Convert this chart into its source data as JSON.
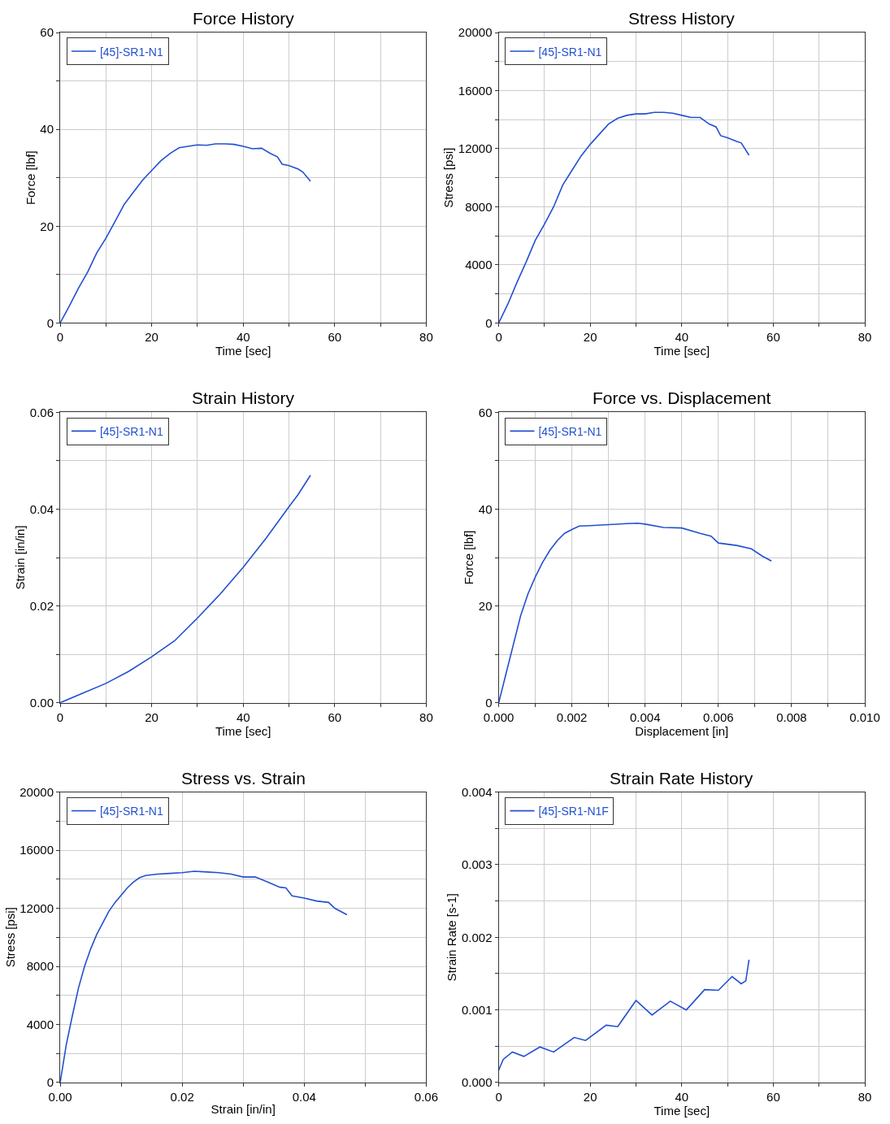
{
  "chart_data": [
    {
      "type": "line",
      "title": "Force History",
      "xlabel": "Time [sec]",
      "ylabel": "Force [lbf]",
      "legend": "top left",
      "grid": true,
      "line_style": "solid",
      "xlim": [
        0,
        80
      ],
      "ylim": [
        0,
        60
      ],
      "xticks": [
        0,
        {
          "value": 10,
          "label": null
        },
        20,
        {
          "value": 30,
          "label": null
        },
        40,
        {
          "value": 50,
          "label": null
        },
        60,
        {
          "value": 70,
          "label": null
        },
        80
      ],
      "yticks": [
        0,
        {
          "value": 10,
          "label": null
        },
        20,
        {
          "value": 30,
          "label": null
        },
        40,
        {
          "value": 50,
          "label": null
        },
        60
      ],
      "series": [
        {
          "name": "[45]-SR1-N1",
          "color": "#2250d0",
          "x": [
            0,
            2,
            4,
            6,
            8,
            10,
            12,
            14,
            16,
            18,
            20,
            22,
            24,
            26,
            28,
            30,
            32,
            34,
            36,
            38,
            40,
            42,
            44,
            46,
            47.5,
            48.5,
            50,
            52,
            53,
            54.7
          ],
          "values": [
            0,
            3.5,
            7.2,
            10.5,
            14.5,
            17.5,
            21,
            24.5,
            27,
            29.5,
            31.5,
            33.5,
            35,
            36.2,
            36.5,
            36.8,
            36.7,
            37,
            37,
            36.9,
            36.5,
            36,
            36.1,
            35,
            34.3,
            32.8,
            32.5,
            31.8,
            31.2,
            29.3
          ]
        }
      ]
    },
    {
      "type": "line",
      "title": "Stress History",
      "xlabel": "Time [sec]",
      "ylabel": "Stress [psi]",
      "legend": "top left",
      "grid": true,
      "line_style": "solid",
      "xlim": [
        0,
        80
      ],
      "ylim": [
        0,
        20000
      ],
      "xticks": [
        0,
        {
          "value": 10,
          "label": null
        },
        20,
        {
          "value": 30,
          "label": null
        },
        40,
        {
          "value": 50,
          "label": null
        },
        60,
        {
          "value": 70,
          "label": null
        },
        80
      ],
      "yticks": [
        0,
        {
          "value": 2000,
          "label": null
        },
        4000,
        {
          "value": 6000,
          "label": null
        },
        8000,
        {
          "value": 10000,
          "label": null
        },
        12000,
        {
          "value": 14000,
          "label": null
        },
        16000,
        {
          "value": 18000,
          "label": null
        },
        20000
      ],
      "series": [
        {
          "name": "[45]-SR1-N1",
          "color": "#2250d0",
          "x": [
            0,
            2,
            4,
            6,
            8,
            10,
            12,
            14,
            16,
            18,
            20,
            22,
            24,
            26,
            28,
            30,
            32,
            34,
            36,
            38,
            40,
            42,
            44,
            46,
            47.5,
            48.5,
            50,
            52,
            53,
            54.7
          ],
          "values": [
            0,
            1300,
            2800,
            4200,
            5700,
            6800,
            8000,
            9500,
            10500,
            11500,
            12300,
            13000,
            13700,
            14100,
            14300,
            14400,
            14400,
            14500,
            14500,
            14450,
            14300,
            14150,
            14150,
            13700,
            13500,
            12900,
            12750,
            12500,
            12400,
            11550
          ]
        }
      ]
    },
    {
      "type": "line",
      "title": "Strain History",
      "xlabel": "Time [sec]",
      "ylabel": "Strain [in/in]",
      "legend": "top left",
      "grid": true,
      "line_style": "solid",
      "xlim": [
        0,
        80
      ],
      "ylim": [
        0,
        0.06
      ],
      "xticks": [
        0,
        {
          "value": 10,
          "label": null
        },
        20,
        {
          "value": 30,
          "label": null
        },
        40,
        {
          "value": 50,
          "label": null
        },
        60,
        {
          "value": 70,
          "label": null
        },
        80
      ],
      "yticks": [
        {
          "value": 0,
          "label": "0.00"
        },
        {
          "value": 0.01,
          "label": null
        },
        0.02,
        {
          "value": 0.03,
          "label": null
        },
        0.04,
        {
          "value": 0.05,
          "label": null
        },
        0.06
      ],
      "series": [
        {
          "name": "[45]-SR1-N1",
          "color": "#2250d0",
          "x": [
            0,
            5,
            10,
            15,
            20,
            25,
            30,
            35,
            40,
            45,
            50,
            52,
            54.7
          ],
          "values": [
            0,
            0.002,
            0.004,
            0.0065,
            0.0095,
            0.0128,
            0.0175,
            0.0225,
            0.028,
            0.034,
            0.0405,
            0.043,
            0.047
          ]
        }
      ]
    },
    {
      "type": "line",
      "title": "Force vs. Displacement",
      "xlabel": "Displacement [in]",
      "ylabel": "Force [lbf]",
      "legend": "top left",
      "grid": true,
      "line_style": "solid",
      "xlim": [
        0,
        0.01
      ],
      "ylim": [
        0,
        60
      ],
      "xticks": [
        {
          "value": 0,
          "label": "0.000"
        },
        {
          "value": 0.001,
          "label": null
        },
        0.002,
        {
          "value": 0.003,
          "label": null
        },
        0.004,
        {
          "value": 0.005,
          "label": null
        },
        0.006,
        {
          "value": 0.007,
          "label": null
        },
        0.008,
        {
          "value": 0.009,
          "label": null
        },
        {
          "value": 0.01,
          "label": "0.010"
        }
      ],
      "yticks": [
        0,
        {
          "value": 10,
          "label": null
        },
        20,
        {
          "value": 30,
          "label": null
        },
        40,
        {
          "value": 50,
          "label": null
        },
        60
      ],
      "series": [
        {
          "name": "[45]-SR1-N1",
          "color": "#2250d0",
          "x": [
            0,
            0.0002,
            0.0004,
            0.0006,
            0.0008,
            0.001,
            0.0012,
            0.0014,
            0.0016,
            0.0018,
            0.002,
            0.0022,
            0.0025,
            0.003,
            0.0035,
            0.0038,
            0.004,
            0.0045,
            0.005,
            0.0055,
            0.0058,
            0.006,
            0.0065,
            0.0069,
            0.0072,
            0.00745
          ],
          "values": [
            0,
            6,
            12,
            18,
            22.5,
            26,
            29,
            31.5,
            33.5,
            35,
            35.8,
            36.5,
            36.6,
            36.8,
            37,
            37.1,
            36.9,
            36.2,
            36.1,
            35,
            34.4,
            33,
            32.5,
            31.8,
            30.3,
            29.3
          ]
        }
      ]
    },
    {
      "type": "line",
      "title": "Stress vs. Strain",
      "xlabel": "Strain [in/in]",
      "ylabel": "Stress [psi]",
      "legend": "top left",
      "grid": true,
      "line_style": "solid",
      "xlim": [
        0,
        0.06
      ],
      "ylim": [
        0,
        20000
      ],
      "xticks": [
        {
          "value": 0,
          "label": "0.00"
        },
        {
          "value": 0.01,
          "label": null
        },
        0.02,
        {
          "value": 0.03,
          "label": null
        },
        0.04,
        {
          "value": 0.05,
          "label": null
        },
        0.06
      ],
      "yticks": [
        0,
        {
          "value": 2000,
          "label": null
        },
        4000,
        {
          "value": 6000,
          "label": null
        },
        8000,
        {
          "value": 10000,
          "label": null
        },
        12000,
        {
          "value": 14000,
          "label": null
        },
        16000,
        {
          "value": 18000,
          "label": null
        },
        20000
      ],
      "series": [
        {
          "name": "[45]-SR1-N1",
          "color": "#2250d0",
          "x": [
            0,
            0.001,
            0.002,
            0.003,
            0.004,
            0.005,
            0.006,
            0.007,
            0.008,
            0.009,
            0.01,
            0.011,
            0.012,
            0.013,
            0.014,
            0.016,
            0.018,
            0.02,
            0.022,
            0.024,
            0.026,
            0.028,
            0.03,
            0.032,
            0.034,
            0.036,
            0.037,
            0.038,
            0.04,
            0.042,
            0.044,
            0.045,
            0.047
          ],
          "values": [
            0,
            2600,
            4600,
            6500,
            8000,
            9200,
            10200,
            11000,
            11800,
            12400,
            12900,
            13400,
            13800,
            14100,
            14250,
            14350,
            14400,
            14450,
            14550,
            14500,
            14450,
            14350,
            14150,
            14150,
            13800,
            13450,
            13400,
            12850,
            12700,
            12500,
            12400,
            12000,
            11550
          ]
        }
      ]
    },
    {
      "type": "line",
      "title": "Strain Rate History",
      "xlabel": "Time [sec]",
      "ylabel": "Strain Rate [s-1]",
      "legend": "top left",
      "grid": true,
      "line_style": "solid",
      "xlim": [
        0,
        80
      ],
      "ylim": [
        0,
        0.004
      ],
      "xticks": [
        0,
        {
          "value": 10,
          "label": null
        },
        20,
        {
          "value": 30,
          "label": null
        },
        40,
        {
          "value": 50,
          "label": null
        },
        60,
        {
          "value": 70,
          "label": null
        },
        80
      ],
      "yticks": [
        {
          "value": 0,
          "label": "0.000"
        },
        {
          "value": 0.0005,
          "label": null
        },
        0.001,
        {
          "value": 0.0015,
          "label": null
        },
        0.002,
        {
          "value": 0.0025,
          "label": null
        },
        0.003,
        {
          "value": 0.0035,
          "label": null
        },
        0.004
      ],
      "series": [
        {
          "name": "[45]-SR1-N1F",
          "color": "#2250d0",
          "x": [
            0,
            1,
            3,
            5.5,
            9,
            12,
            16.5,
            19,
            23.5,
            26,
            30,
            33.5,
            37.5,
            41,
            45,
            48,
            51,
            53,
            54,
            54.7
          ],
          "values": [
            0.00017,
            0.00032,
            0.00042,
            0.00036,
            0.00049,
            0.00042,
            0.00062,
            0.00058,
            0.00079,
            0.00077,
            0.00113,
            0.00093,
            0.00112,
            0.001,
            0.00128,
            0.00127,
            0.00146,
            0.00136,
            0.0014,
            0.00169
          ]
        }
      ]
    }
  ]
}
